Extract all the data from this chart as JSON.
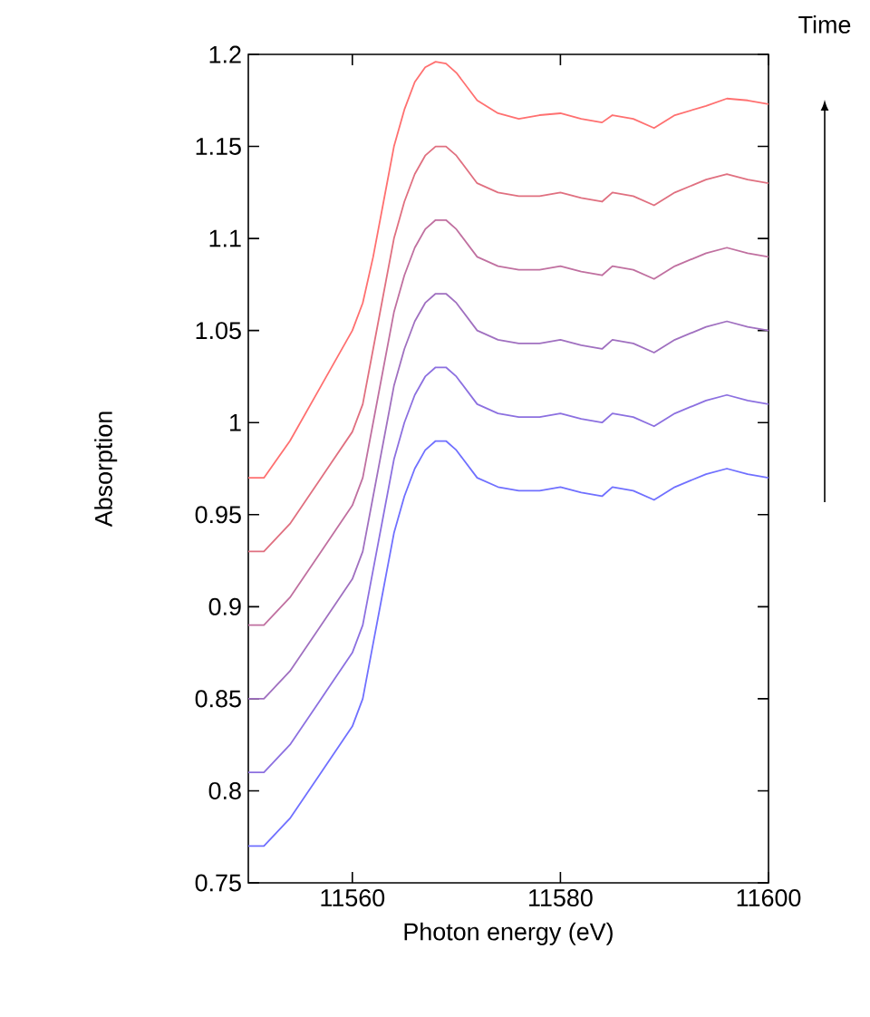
{
  "chart_data": {
    "type": "line",
    "xlabel": "Photon energy (eV)",
    "ylabel": "Absorption",
    "annotations": [
      "Time"
    ],
    "x": [
      11550,
      11551.5,
      11554,
      11557,
      11560,
      11561,
      11562,
      11563,
      11564,
      11565,
      11566,
      11567,
      11568,
      11569,
      11570,
      11572,
      11574,
      11576,
      11578,
      11580,
      11582,
      11584,
      11585,
      11587,
      11589,
      11591,
      11594,
      11596,
      11598,
      11600
    ],
    "series": [
      {
        "color": "#7070ff",
        "values": [
          0.77,
          0.77,
          0.785,
          0.81,
          0.835,
          0.85,
          0.88,
          0.91,
          0.94,
          0.96,
          0.975,
          0.985,
          0.99,
          0.99,
          0.985,
          0.97,
          0.965,
          0.963,
          0.963,
          0.965,
          0.962,
          0.96,
          0.965,
          0.963,
          0.958,
          0.965,
          0.972,
          0.975,
          0.972,
          0.97
        ]
      },
      {
        "color": "#8c70e0",
        "values": [
          0.81,
          0.81,
          0.825,
          0.85,
          0.875,
          0.89,
          0.92,
          0.95,
          0.98,
          1.0,
          1.015,
          1.025,
          1.03,
          1.03,
          1.025,
          1.01,
          1.005,
          1.003,
          1.003,
          1.005,
          1.002,
          1.0,
          1.005,
          1.003,
          0.998,
          1.005,
          1.012,
          1.015,
          1.012,
          1.01
        ]
      },
      {
        "color": "#a070c0",
        "values": [
          0.85,
          0.85,
          0.865,
          0.89,
          0.915,
          0.93,
          0.96,
          0.99,
          1.02,
          1.04,
          1.055,
          1.065,
          1.07,
          1.07,
          1.065,
          1.05,
          1.045,
          1.043,
          1.043,
          1.045,
          1.042,
          1.04,
          1.045,
          1.043,
          1.038,
          1.045,
          1.052,
          1.055,
          1.052,
          1.05
        ]
      },
      {
        "color": "#c070a0",
        "values": [
          0.89,
          0.89,
          0.905,
          0.93,
          0.955,
          0.97,
          1.0,
          1.03,
          1.06,
          1.08,
          1.095,
          1.105,
          1.11,
          1.11,
          1.105,
          1.09,
          1.085,
          1.083,
          1.083,
          1.085,
          1.082,
          1.08,
          1.085,
          1.083,
          1.078,
          1.085,
          1.092,
          1.095,
          1.092,
          1.09
        ]
      },
      {
        "color": "#e07080",
        "values": [
          0.93,
          0.93,
          0.945,
          0.97,
          0.995,
          1.01,
          1.04,
          1.07,
          1.1,
          1.12,
          1.135,
          1.145,
          1.15,
          1.15,
          1.145,
          1.13,
          1.125,
          1.123,
          1.123,
          1.125,
          1.122,
          1.12,
          1.125,
          1.123,
          1.118,
          1.125,
          1.132,
          1.135,
          1.132,
          1.13
        ]
      },
      {
        "color": "#ff7070",
        "values": [
          0.97,
          0.97,
          0.99,
          1.02,
          1.05,
          1.065,
          1.09,
          1.12,
          1.15,
          1.17,
          1.185,
          1.193,
          1.196,
          1.195,
          1.19,
          1.175,
          1.168,
          1.165,
          1.167,
          1.168,
          1.165,
          1.163,
          1.167,
          1.165,
          1.16,
          1.167,
          1.172,
          1.176,
          1.175,
          1.173
        ]
      }
    ],
    "xlim": [
      11550,
      11600
    ],
    "xticks": [
      11560,
      11580,
      11600
    ],
    "ylim": [
      0.75,
      1.2
    ],
    "yticks": [
      0.75,
      0.8,
      0.85,
      0.9,
      0.95,
      1,
      1.05,
      1.1,
      1.15,
      1.2
    ],
    "grid": false,
    "marker": "none",
    "line_style": "solid"
  }
}
